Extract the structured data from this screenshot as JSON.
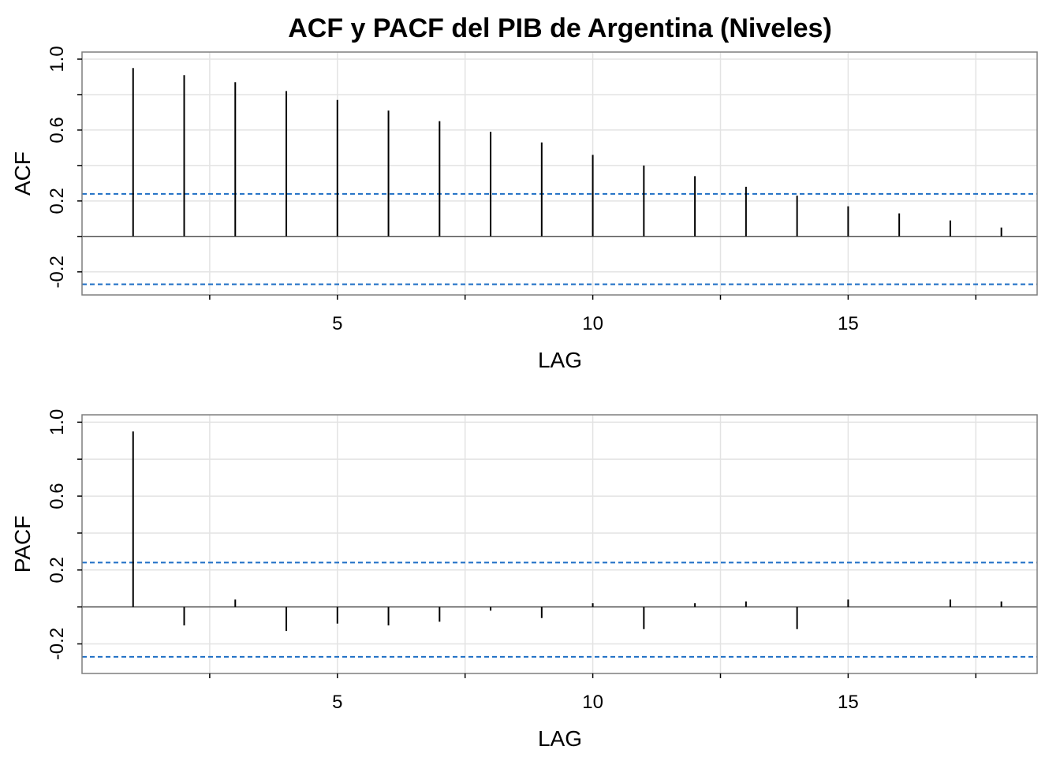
{
  "chart_data": {
    "title": "ACF y PACF del PIB de Argentina (Niveles)",
    "type": "bar",
    "panels": [
      {
        "name": "acf",
        "ylabel": "ACF",
        "xlabel": "LAG",
        "lags": [
          1,
          2,
          3,
          4,
          5,
          6,
          7,
          8,
          9,
          10,
          11,
          12,
          13,
          14,
          15,
          16,
          17,
          18
        ],
        "values": [
          0.95,
          0.91,
          0.87,
          0.82,
          0.77,
          0.71,
          0.65,
          0.59,
          0.53,
          0.46,
          0.4,
          0.34,
          0.28,
          0.23,
          0.17,
          0.13,
          0.09,
          0.05
        ],
        "ci": [
          0.24,
          -0.27
        ],
        "ylim": [
          -0.33,
          1.04
        ],
        "xlim": [
          0,
          18.7
        ],
        "yticks": [
          -0.2,
          0.2,
          0.6,
          1.0
        ],
        "ytick_labels": [
          "-0.2",
          "0.2",
          "0.6",
          "1.0"
        ],
        "xticks": [
          5,
          10,
          15
        ],
        "xtick_labels": [
          "5",
          "10",
          "15"
        ]
      },
      {
        "name": "pacf",
        "ylabel": "PACF",
        "xlabel": "LAG",
        "lags": [
          1,
          2,
          3,
          4,
          5,
          6,
          7,
          8,
          9,
          10,
          11,
          12,
          13,
          14,
          15,
          16,
          17,
          18
        ],
        "values": [
          0.95,
          -0.1,
          0.04,
          -0.13,
          -0.09,
          -0.1,
          -0.08,
          -0.02,
          -0.06,
          0.02,
          -0.12,
          0.02,
          0.03,
          -0.12,
          0.04,
          0.0,
          0.04,
          0.03
        ],
        "ci": [
          0.24,
          -0.27
        ],
        "ylim": [
          -0.36,
          1.04
        ],
        "xlim": [
          0,
          18.7
        ],
        "yticks": [
          -0.2,
          0.2,
          0.6,
          1.0
        ],
        "ytick_labels": [
          "-0.2",
          "0.2",
          "0.6",
          "1.0"
        ],
        "xticks": [
          5,
          10,
          15
        ],
        "xtick_labels": [
          "5",
          "10",
          "15"
        ]
      }
    ],
    "colors": {
      "bars": "#000000",
      "ci": "#1f6fc5",
      "grid": "#e3e3e3",
      "frame": "#7f7f7f"
    },
    "grid": true
  }
}
